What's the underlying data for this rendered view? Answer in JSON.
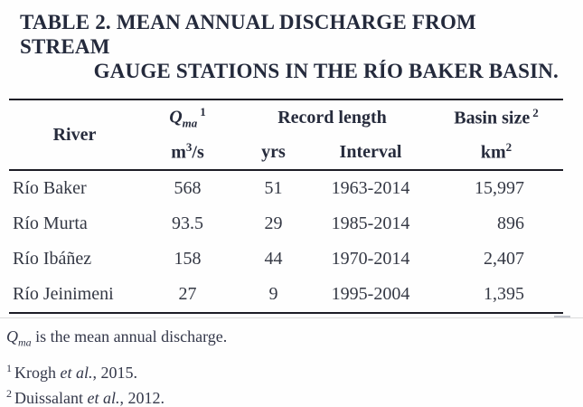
{
  "caption": {
    "line1": "TABLE 2. MEAN ANNUAL DISCHARGE FROM STREAM",
    "line2": "GAUGE STATIONS IN THE RÍO BAKER BASIN."
  },
  "table": {
    "header": {
      "river": "River",
      "qma": {
        "symbol": "Q",
        "sub": "ma",
        "sup": "1"
      },
      "qma_unit": {
        "base": "m",
        "sup": "3",
        "rest": "/s"
      },
      "record_length": "Record length",
      "yrs": "yrs",
      "interval": "Interval",
      "basin": {
        "label": "Basin size",
        "sup": "2"
      },
      "basin_unit": {
        "base": "km",
        "sup": "2"
      }
    },
    "rows": [
      {
        "river": "Río Baker",
        "qma": "568",
        "yrs": "51",
        "interval": "1963-2014",
        "basin": "15,997"
      },
      {
        "river": "Río Murta",
        "qma": "93.5",
        "yrs": "29",
        "interval": "1985-2014",
        "basin": "896"
      },
      {
        "river": "Río Ibáñez",
        "qma": "158",
        "yrs": "44",
        "interval": "1970-2014",
        "basin": "2,407"
      },
      {
        "river": "Río Jeinimeni",
        "qma": "27",
        "yrs": "9",
        "interval": "1995-2004",
        "basin": "1,395"
      }
    ]
  },
  "footnotes": {
    "qma_note": {
      "symbol": "Q",
      "sub": "ma",
      "text": " is the mean annual discharge."
    },
    "refs": [
      {
        "marker": "1",
        "pre": "Krogh ",
        "italic": "et al.",
        "post": ", 2015."
      },
      {
        "marker": "2",
        "pre": "Duissalant ",
        "italic": "et al.",
        "post": ", 2012."
      }
    ]
  },
  "colors": {
    "background": "#fefefe",
    "ink": "#343844",
    "ink_strong": "#242a3c",
    "rule": "#1d1d26",
    "faint_rule": "#dcdcdc"
  }
}
